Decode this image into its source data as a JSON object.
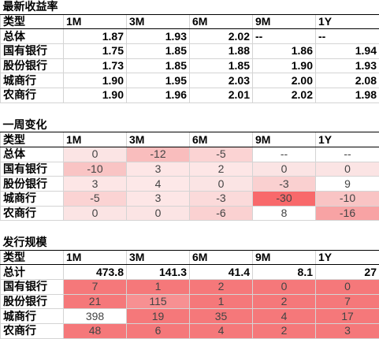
{
  "sections": [
    {
      "title": "最新收益率",
      "header": [
        "类型",
        "1M",
        "3M",
        "6M",
        "9M",
        "1Y"
      ],
      "rows": [
        [
          "总体",
          "1.87",
          "1.93",
          "2.02",
          "--",
          "--"
        ],
        [
          "国有银行",
          "1.75",
          "1.85",
          "1.88",
          "1.86",
          "1.94"
        ],
        [
          "股份银行",
          "1.73",
          "1.85",
          "1.85",
          "1.90",
          "1.93"
        ],
        [
          "城商行",
          "1.90",
          "1.95",
          "2.03",
          "2.00",
          "2.08"
        ],
        [
          "农商行",
          "1.90",
          "1.96",
          "2.01",
          "2.02",
          "1.98"
        ]
      ]
    },
    {
      "title": "一周变化",
      "header": [
        "类型",
        "1M",
        "3M",
        "6M",
        "9M",
        "1Y"
      ],
      "rows": [
        [
          "总体",
          "0",
          "-12",
          "-5",
          "--",
          "--"
        ],
        [
          "国有银行",
          "-10",
          "3",
          "2",
          "0",
          "0"
        ],
        [
          "股份银行",
          "3",
          "4",
          "0",
          "-3",
          "9"
        ],
        [
          "城商行",
          "-5",
          "3",
          "-3",
          "-30",
          "-10"
        ],
        [
          "农商行",
          "0",
          "0",
          "-6",
          "8",
          "-16"
        ]
      ],
      "fills": [
        [
          "#fbe4e4",
          "#f9bdbd",
          "#fbd3d3",
          "#ffffff",
          "#ffffff"
        ],
        [
          "#f9c4c4",
          "#fde6e6",
          "#fde6e6",
          "#fbe4e4",
          "#fbe4e4"
        ],
        [
          "#fde6e6",
          "#fde8e8",
          "#fbe4e4",
          "#fad0d0",
          "#ffffff"
        ],
        [
          "#fbd3d3",
          "#fde6e6",
          "#fbdada",
          "#f8696b",
          "#f9c4c4"
        ],
        [
          "#fbe4e4",
          "#fbe4e4",
          "#fad1d1",
          "#ffffff",
          "#f8a3a4"
        ]
      ]
    },
    {
      "title": "发行规模",
      "header": [
        "类型",
        "1M",
        "3M",
        "6M",
        "9M",
        "1Y"
      ],
      "rows": [
        [
          "总计",
          "473.8",
          "141.3",
          "41.4",
          "8.1",
          "27"
        ],
        [
          "国有银行",
          "7",
          "1",
          "2",
          "0",
          "0"
        ],
        [
          "股份银行",
          "21",
          "115",
          "1",
          "2",
          "7"
        ],
        [
          "城商行",
          "398",
          "19",
          "35",
          "4",
          "17"
        ],
        [
          "农商行",
          "48",
          "6",
          "4",
          "2",
          "3"
        ]
      ],
      "fills": [
        [
          "#ffffff",
          "#ffffff",
          "#ffffff",
          "#ffffff",
          "#ffffff"
        ],
        [
          "#f5787a",
          "#f5787a",
          "#f5787a",
          "#f5787a",
          "#f5787a"
        ],
        [
          "#f5787a",
          "#f79092",
          "#f5787a",
          "#f5787a",
          "#f5787a"
        ],
        [
          "#ffffff",
          "#f5787a",
          "#f5787a",
          "#f5787a",
          "#f5787a"
        ],
        [
          "#f5787a",
          "#f5787a",
          "#f5787a",
          "#f5787a",
          "#f5787a"
        ]
      ]
    }
  ]
}
